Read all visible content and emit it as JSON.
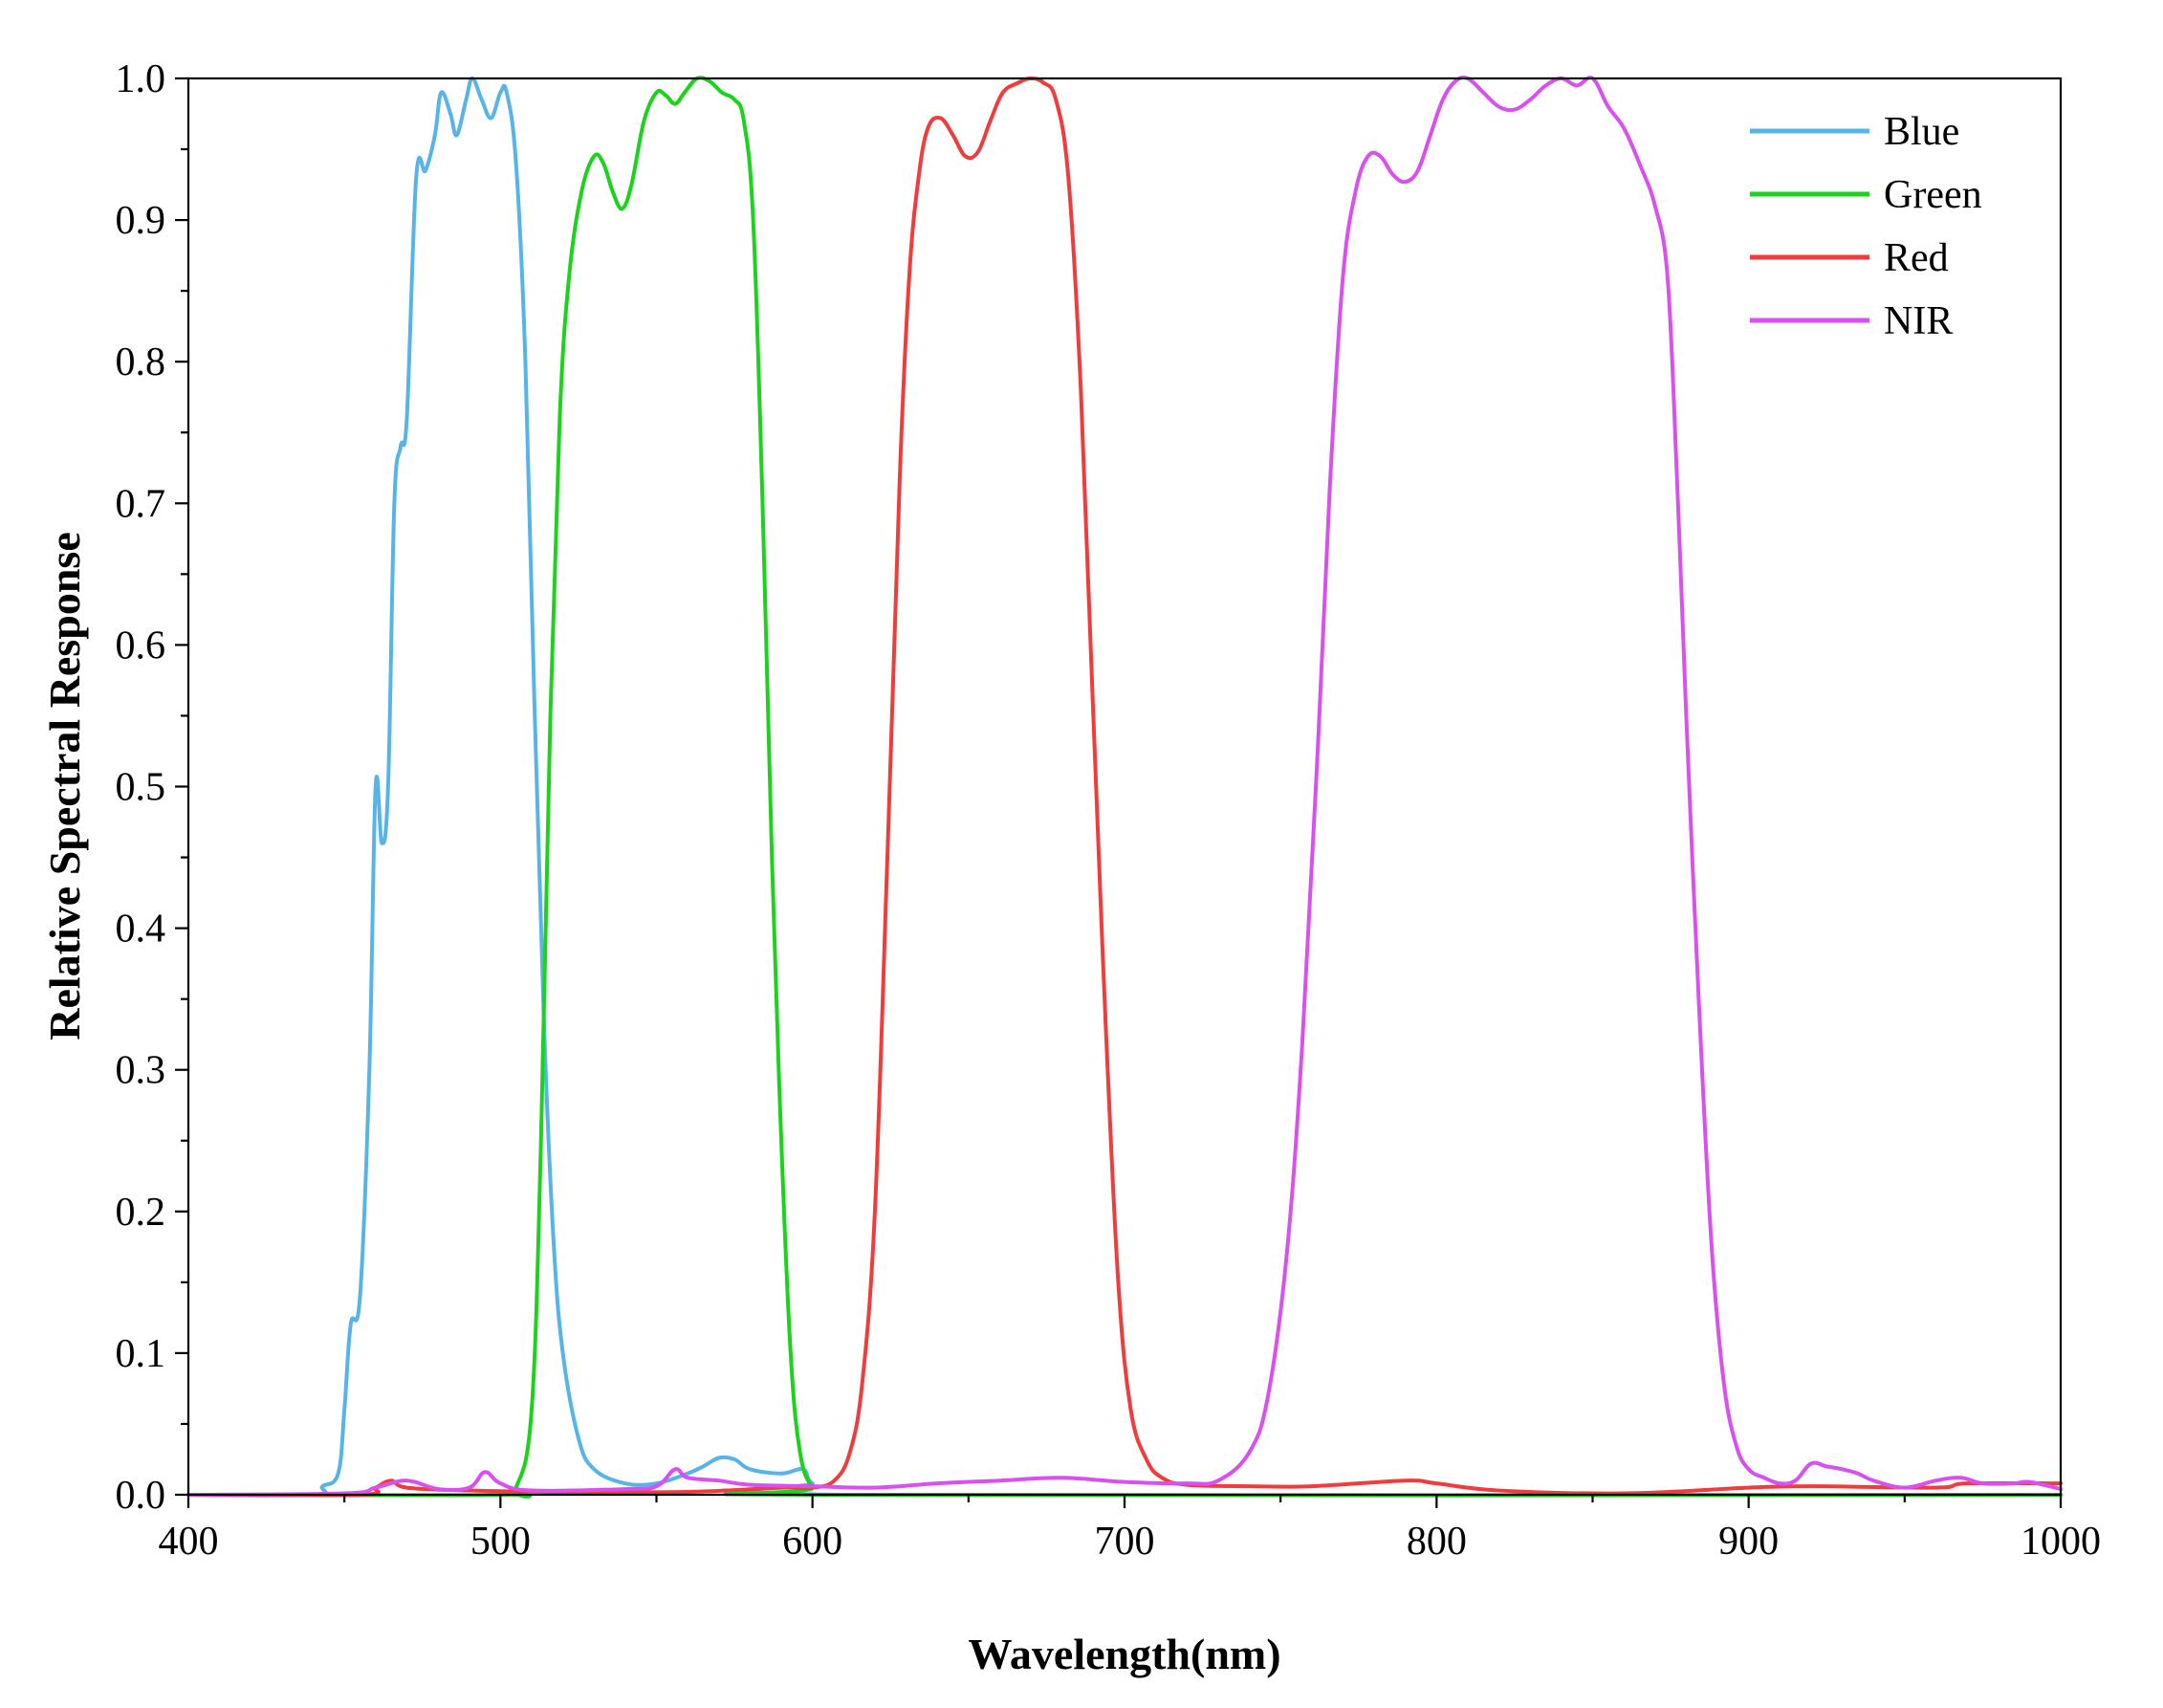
{
  "chart_data": {
    "type": "line",
    "title": "",
    "xlabel": "Wavelength(nm)",
    "ylabel": "Relative Spectral Response",
    "xlim": [
      400,
      1000
    ],
    "ylim": [
      0,
      1.0
    ],
    "x_ticks": [
      400,
      500,
      600,
      700,
      800,
      900,
      1000
    ],
    "y_ticks": [
      0.0,
      0.1,
      0.2,
      0.3,
      0.4,
      0.5,
      0.6,
      0.7,
      0.8,
      0.9,
      1.0
    ],
    "x_tick_labels": [
      "400",
      "500",
      "600",
      "700",
      "800",
      "900",
      "1000"
    ],
    "y_tick_labels": [
      "0.0",
      "0.1",
      "0.2",
      "0.3",
      "0.4",
      "0.5",
      "0.6",
      "0.7",
      "0.8",
      "0.9",
      "1.0"
    ],
    "grid": false,
    "legend_position": "top-right",
    "series": [
      {
        "name": "Blue",
        "color": "#56B4E9",
        "points": [
          [
            400,
            0.0
          ],
          [
            440,
            0.0
          ],
          [
            443,
            0.006
          ],
          [
            448,
            0.015
          ],
          [
            450,
            0.06
          ],
          [
            452,
            0.12
          ],
          [
            455,
            0.14
          ],
          [
            458,
            0.3
          ],
          [
            460,
            0.5
          ],
          [
            462,
            0.46
          ],
          [
            464,
            0.5
          ],
          [
            466,
            0.7
          ],
          [
            468,
            0.74
          ],
          [
            470,
            0.76
          ],
          [
            473,
            0.93
          ],
          [
            476,
            0.935
          ],
          [
            479,
            0.96
          ],
          [
            481,
            0.99
          ],
          [
            484,
            0.975
          ],
          [
            486,
            0.96
          ],
          [
            489,
            0.985
          ],
          [
            491,
            1.0
          ],
          [
            494,
            0.985
          ],
          [
            497,
            0.972
          ],
          [
            500,
            0.99
          ],
          [
            502,
            0.99
          ],
          [
            505,
            0.94
          ],
          [
            508,
            0.8
          ],
          [
            511,
            0.55
          ],
          [
            514,
            0.33
          ],
          [
            517,
            0.18
          ],
          [
            520,
            0.1
          ],
          [
            525,
            0.04
          ],
          [
            530,
            0.018
          ],
          [
            540,
            0.008
          ],
          [
            550,
            0.008
          ],
          [
            560,
            0.015
          ],
          [
            565,
            0.02
          ],
          [
            570,
            0.026
          ],
          [
            575,
            0.025
          ],
          [
            580,
            0.018
          ],
          [
            590,
            0.015
          ],
          [
            597,
            0.018
          ],
          [
            600,
            0.008
          ],
          [
            610,
            0.0
          ],
          [
            1000,
            0.0
          ]
        ]
      },
      {
        "name": "Green",
        "color": "#1BD31B",
        "points": [
          [
            400,
            0.0
          ],
          [
            500,
            0.0
          ],
          [
            505,
            0.005
          ],
          [
            510,
            0.06
          ],
          [
            513,
            0.25
          ],
          [
            516,
            0.55
          ],
          [
            519,
            0.76
          ],
          [
            522,
            0.86
          ],
          [
            526,
            0.92
          ],
          [
            530,
            0.945
          ],
          [
            533,
            0.94
          ],
          [
            536,
            0.92
          ],
          [
            539,
            0.908
          ],
          [
            542,
            0.925
          ],
          [
            546,
            0.97
          ],
          [
            550,
            0.99
          ],
          [
            553,
            0.988
          ],
          [
            556,
            0.982
          ],
          [
            559,
            0.99
          ],
          [
            563,
            1.0
          ],
          [
            567,
            0.998
          ],
          [
            571,
            0.99
          ],
          [
            575,
            0.985
          ],
          [
            578,
            0.97
          ],
          [
            581,
            0.9
          ],
          [
            584,
            0.7
          ],
          [
            587,
            0.45
          ],
          [
            590,
            0.25
          ],
          [
            593,
            0.1
          ],
          [
            596,
            0.03
          ],
          [
            600,
            0.005
          ],
          [
            605,
            0.0
          ],
          [
            1000,
            0.0
          ]
        ]
      },
      {
        "name": "Red",
        "color": "#F03C3C",
        "points": [
          [
            400,
            0.0
          ],
          [
            455,
            0.0
          ],
          [
            460,
            0.005
          ],
          [
            465,
            0.01
          ],
          [
            470,
            0.005
          ],
          [
            490,
            0.003
          ],
          [
            520,
            0.002
          ],
          [
            560,
            0.002
          ],
          [
            590,
            0.005
          ],
          [
            600,
            0.005
          ],
          [
            607,
            0.01
          ],
          [
            612,
            0.03
          ],
          [
            616,
            0.08
          ],
          [
            620,
            0.2
          ],
          [
            624,
            0.45
          ],
          [
            628,
            0.72
          ],
          [
            631,
            0.86
          ],
          [
            634,
            0.93
          ],
          [
            637,
            0.965
          ],
          [
            641,
            0.972
          ],
          [
            645,
            0.96
          ],
          [
            649,
            0.945
          ],
          [
            653,
            0.948
          ],
          [
            657,
            0.97
          ],
          [
            661,
            0.99
          ],
          [
            666,
            0.997
          ],
          [
            670,
            1.0
          ],
          [
            674,
            0.997
          ],
          [
            678,
            0.985
          ],
          [
            682,
            0.93
          ],
          [
            686,
            0.78
          ],
          [
            690,
            0.55
          ],
          [
            694,
            0.33
          ],
          [
            698,
            0.15
          ],
          [
            702,
            0.06
          ],
          [
            707,
            0.025
          ],
          [
            712,
            0.012
          ],
          [
            720,
            0.007
          ],
          [
            740,
            0.006
          ],
          [
            760,
            0.006
          ],
          [
            790,
            0.01
          ],
          [
            800,
            0.008
          ],
          [
            820,
            0.003
          ],
          [
            860,
            0.001
          ],
          [
            900,
            0.005
          ],
          [
            920,
            0.006
          ],
          [
            960,
            0.005
          ],
          [
            970,
            0.008
          ],
          [
            1000,
            0.008
          ]
        ]
      },
      {
        "name": "NIR",
        "color": "#D94FF0",
        "points": [
          [
            400,
            0.0
          ],
          [
            450,
            0.001
          ],
          [
            460,
            0.005
          ],
          [
            470,
            0.01
          ],
          [
            480,
            0.004
          ],
          [
            490,
            0.005
          ],
          [
            495,
            0.016
          ],
          [
            500,
            0.008
          ],
          [
            510,
            0.003
          ],
          [
            540,
            0.004
          ],
          [
            550,
            0.006
          ],
          [
            556,
            0.018
          ],
          [
            560,
            0.012
          ],
          [
            570,
            0.01
          ],
          [
            580,
            0.007
          ],
          [
            600,
            0.006
          ],
          [
            620,
            0.005
          ],
          [
            640,
            0.008
          ],
          [
            660,
            0.01
          ],
          [
            680,
            0.012
          ],
          [
            700,
            0.009
          ],
          [
            720,
            0.008
          ],
          [
            730,
            0.01
          ],
          [
            740,
            0.03
          ],
          [
            746,
            0.07
          ],
          [
            752,
            0.17
          ],
          [
            757,
            0.32
          ],
          [
            762,
            0.53
          ],
          [
            766,
            0.72
          ],
          [
            770,
            0.86
          ],
          [
            774,
            0.92
          ],
          [
            778,
            0.945
          ],
          [
            782,
            0.945
          ],
          [
            786,
            0.932
          ],
          [
            790,
            0.927
          ],
          [
            794,
            0.935
          ],
          [
            798,
            0.96
          ],
          [
            802,
            0.985
          ],
          [
            806,
            0.998
          ],
          [
            810,
            1.0
          ],
          [
            815,
            0.99
          ],
          [
            820,
            0.98
          ],
          [
            825,
            0.978
          ],
          [
            830,
            0.985
          ],
          [
            835,
            0.995
          ],
          [
            840,
            1.0
          ],
          [
            845,
            0.995
          ],
          [
            850,
            1.0
          ],
          [
            855,
            0.98
          ],
          [
            860,
            0.965
          ],
          [
            865,
            0.94
          ],
          [
            870,
            0.91
          ],
          [
            874,
            0.86
          ],
          [
            877,
            0.72
          ],
          [
            880,
            0.55
          ],
          [
            884,
            0.35
          ],
          [
            888,
            0.18
          ],
          [
            892,
            0.08
          ],
          [
            896,
            0.035
          ],
          [
            900,
            0.018
          ],
          [
            905,
            0.012
          ],
          [
            910,
            0.008
          ],
          [
            915,
            0.01
          ],
          [
            920,
            0.022
          ],
          [
            925,
            0.02
          ],
          [
            930,
            0.018
          ],
          [
            935,
            0.015
          ],
          [
            940,
            0.01
          ],
          [
            950,
            0.005
          ],
          [
            960,
            0.01
          ],
          [
            968,
            0.012
          ],
          [
            975,
            0.008
          ],
          [
            985,
            0.008
          ],
          [
            990,
            0.009
          ],
          [
            1000,
            0.004
          ]
        ]
      }
    ]
  }
}
